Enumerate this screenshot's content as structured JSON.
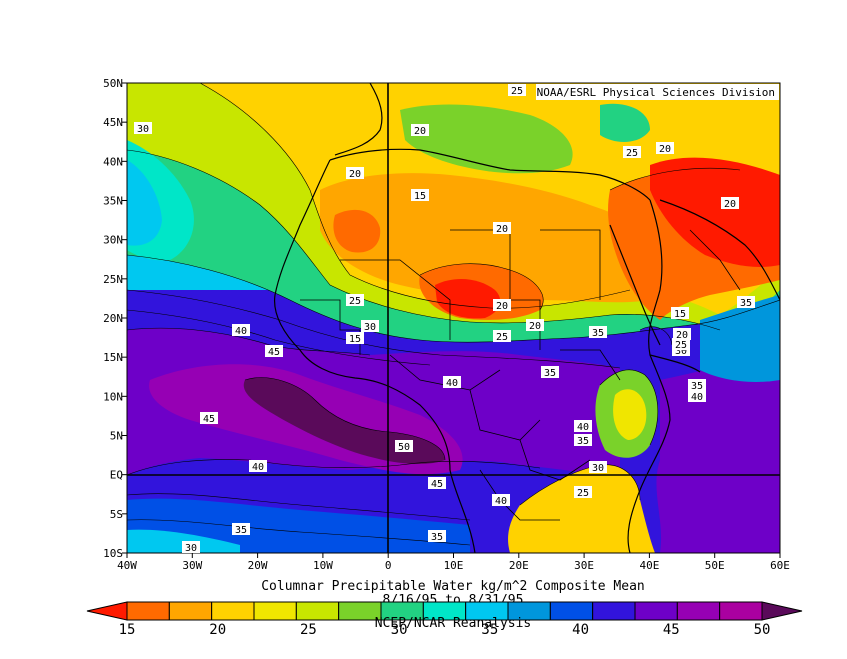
{
  "map": {
    "credit": "NOAA/ESRL Physical Sciences Division",
    "title_line1": "Columnar Precipitable Water kg/m^2 Composite Mean",
    "title_line2": "8/16/95  to 8/31/95",
    "title_line3": "NCEP/NCAR Reanalysis",
    "lon_labels": [
      "40W",
      "30W",
      "20W",
      "10W",
      "0",
      "10E",
      "20E",
      "30E",
      "40E",
      "50E",
      "60E"
    ],
    "lat_labels": [
      "50N",
      "45N",
      "40N",
      "35N",
      "30N",
      "25N",
      "20N",
      "15N",
      "10N",
      "5N",
      "EQ",
      "5S",
      "10S"
    ],
    "colorbar": {
      "labels": [
        "15",
        "20",
        "25",
        "30",
        "35",
        "40",
        "45",
        "50"
      ],
      "colors": [
        "#ff1a00",
        "#ff6a00",
        "#ffa600",
        "#ffd200",
        "#f0e600",
        "#c8e600",
        "#7ad22a",
        "#22d282",
        "#00e6c8",
        "#00c8f0",
        "#0096dc",
        "#0050e6",
        "#3214dc",
        "#6e00c8",
        "#9600b4",
        "#aa00a0",
        "#5a0a5a"
      ]
    },
    "contour_labels": [
      "25",
      "30",
      "20",
      "20",
      "25",
      "20",
      "15",
      "20",
      "20",
      "25",
      "20",
      "15",
      "20",
      "30",
      "35",
      "15",
      "25",
      "30",
      "20",
      "35",
      "40",
      "45",
      "30",
      "25",
      "40",
      "35",
      "35",
      "40",
      "45",
      "40",
      "35",
      "50",
      "40",
      "45",
      "30",
      "40",
      "25",
      "35",
      "30",
      "35"
    ]
  }
}
